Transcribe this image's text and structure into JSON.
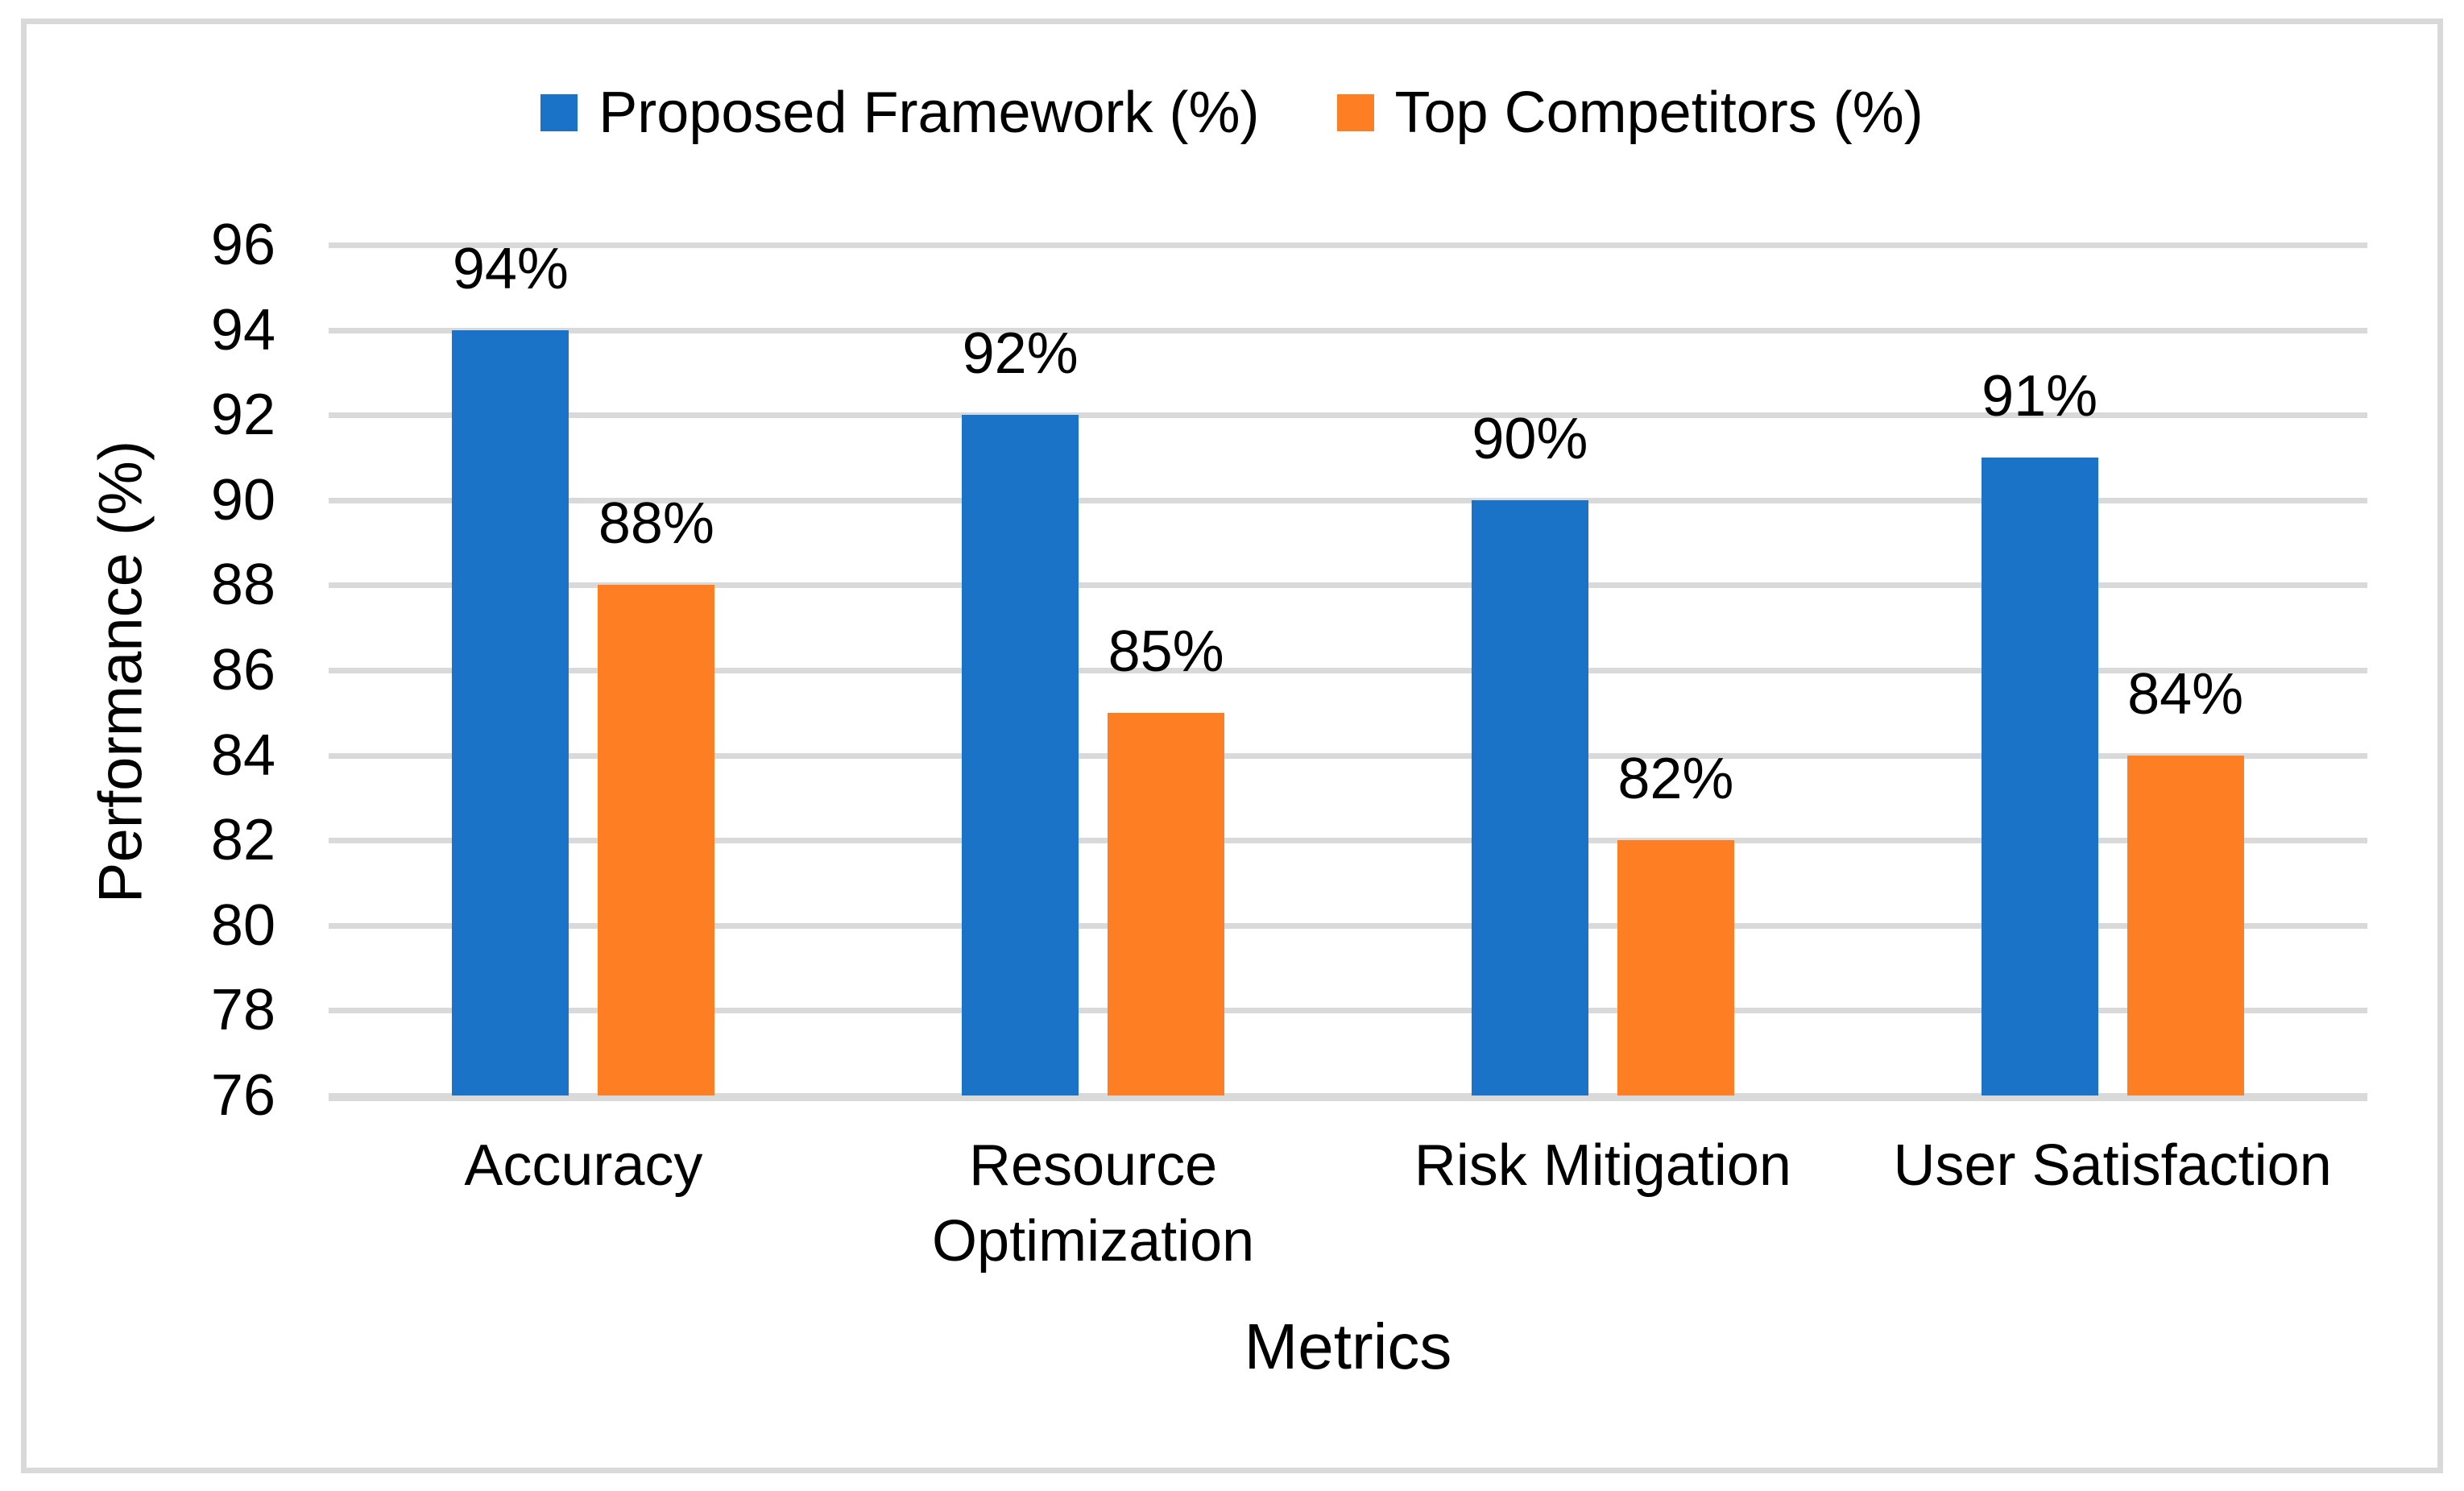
{
  "chart_data": {
    "type": "bar",
    "title": "",
    "categories": [
      "Accuracy",
      "Resource Optimization",
      "Risk Mitigation",
      "User Satisfaction"
    ],
    "series": [
      {
        "name": "Proposed Framework (%)",
        "color": "#1b73c8",
        "values": [
          94,
          92,
          90,
          91
        ],
        "data_labels": [
          "94%",
          "92%",
          "90%",
          "91%"
        ]
      },
      {
        "name": "Top Competitors (%)",
        "color": "#fd7e23",
        "values": [
          88,
          85,
          82,
          84
        ],
        "data_labels": [
          "88%",
          "85%",
          "82%",
          "84%"
        ]
      }
    ],
    "xlabel": "Metrics",
    "ylabel": "Performance (%)",
    "ylim": [
      76,
      96
    ],
    "yticks": [
      76,
      78,
      80,
      82,
      84,
      86,
      88,
      90,
      92,
      94,
      96
    ],
    "grid": true,
    "legend_position": "top-center"
  },
  "colors": {
    "gridline": "#d9d9d9",
    "axis_line": "#d9d9d9",
    "border": "#d9d9d9",
    "text": "#000000"
  }
}
